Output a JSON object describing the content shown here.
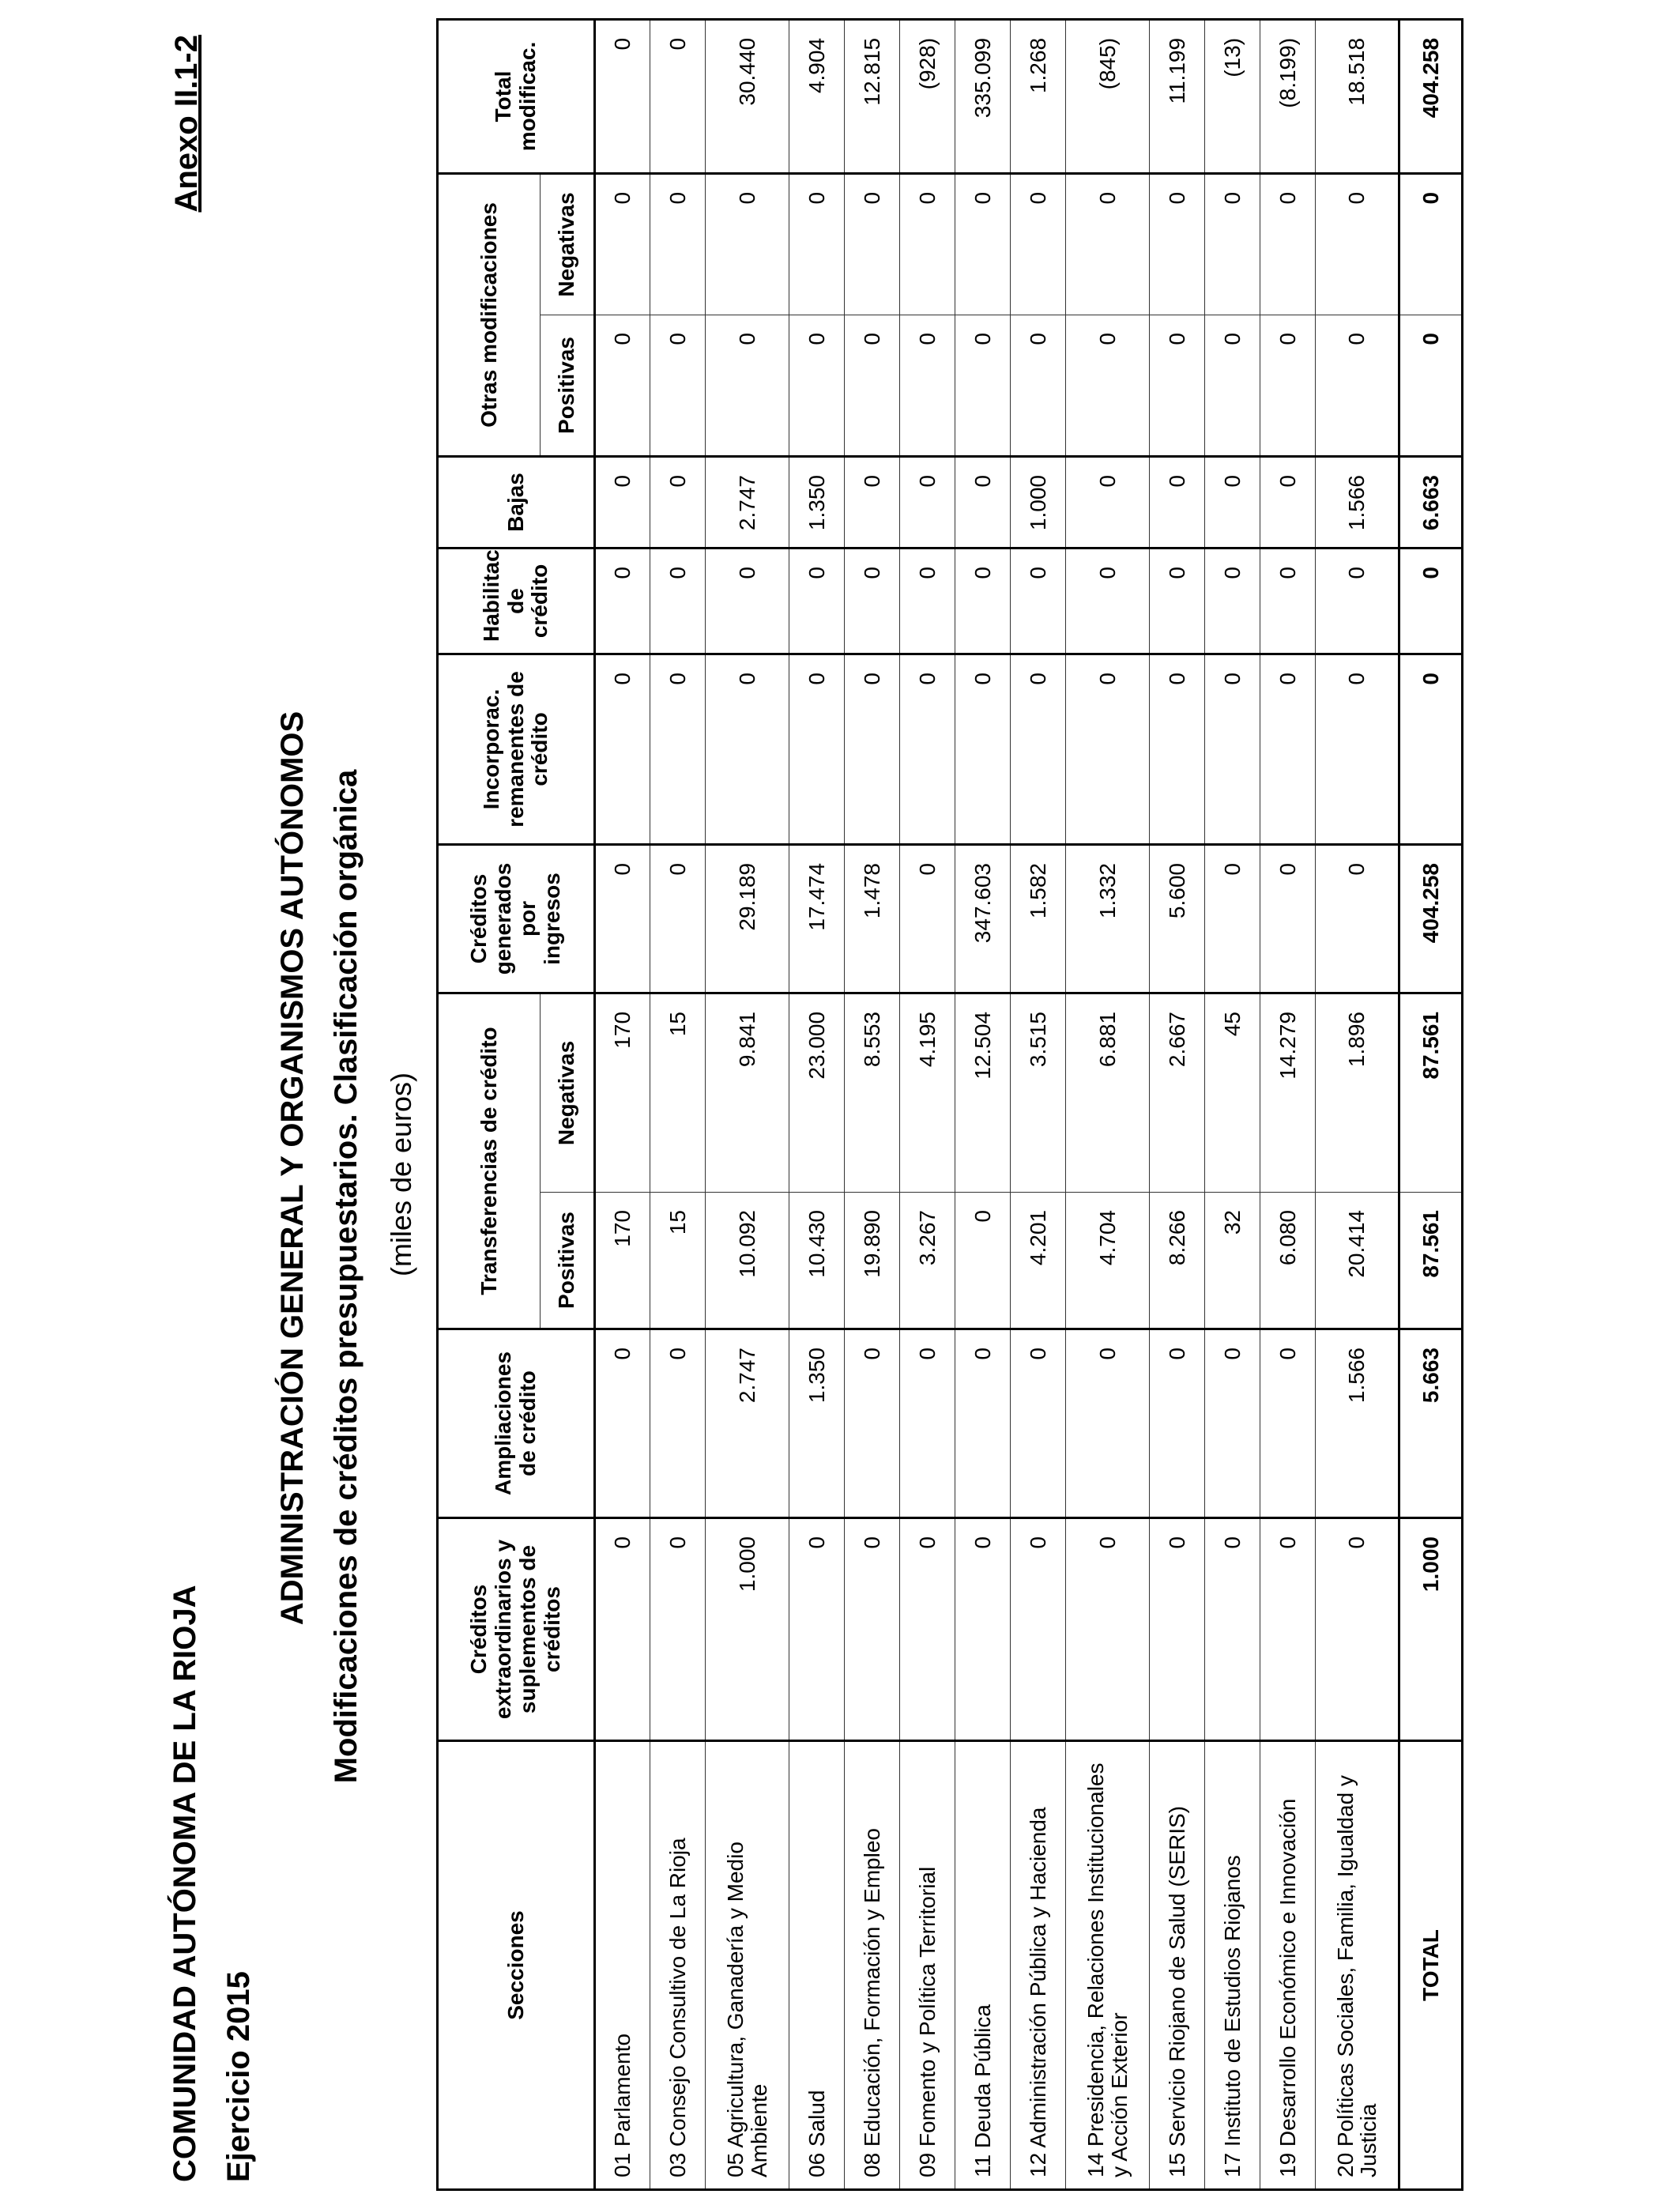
{
  "header": {
    "organization": "COMUNIDAD AUTÓNOMA DE LA RIOJA",
    "year": "Ejercicio 2015",
    "annex": "Anexo II.1-2",
    "title": "ADMINISTRACIÓN GENERAL Y ORGANISMOS AUTÓNOMOS",
    "subtitle": "Modificaciones de créditos presupuestarios. Clasificación orgánica",
    "unit": "(miles de euros)"
  },
  "table": {
    "headers": {
      "secciones": "Secciones",
      "extraordinarios": "Créditos extraordinarios y suplementos de créditos",
      "ampliaciones": "Ampliaciones de crédito",
      "transferencias": "Transferencias de crédito",
      "generados": "Créditos generados por ingresos",
      "incorporac": "Incorporac. remanentes de crédito",
      "habilitac": "Habilitac. de crédito",
      "bajas": "Bajas",
      "otras": "Otras modificaciones",
      "total": "Total modificac.",
      "positivas": "Positivas",
      "negativas": "Negativas"
    },
    "rows": [
      {
        "seccion": "01 Parlamento",
        "values": [
          "0",
          "0",
          "170",
          "170",
          "0",
          "0",
          "0",
          "0",
          "0",
          "0",
          "0"
        ]
      },
      {
        "seccion": "03 Consejo Consultivo de La Rioja",
        "values": [
          "0",
          "0",
          "15",
          "15",
          "0",
          "0",
          "0",
          "0",
          "0",
          "0",
          "0"
        ]
      },
      {
        "seccion": "05 Agricultura, Ganadería y Medio Ambiente",
        "values": [
          "1.000",
          "2.747",
          "10.092",
          "9.841",
          "29.189",
          "0",
          "0",
          "2.747",
          "0",
          "0",
          "30.440"
        ],
        "tall": true
      },
      {
        "seccion": "06 Salud",
        "values": [
          "0",
          "1.350",
          "10.430",
          "23.000",
          "17.474",
          "0",
          "0",
          "1.350",
          "0",
          "0",
          "4.904"
        ]
      },
      {
        "seccion": "08 Educación, Formación y Empleo",
        "values": [
          "0",
          "0",
          "19.890",
          "8.553",
          "1.478",
          "0",
          "0",
          "0",
          "0",
          "0",
          "12.815"
        ]
      },
      {
        "seccion": "09 Fomento y Política Territorial",
        "values": [
          "0",
          "0",
          "3.267",
          "4.195",
          "0",
          "0",
          "0",
          "0",
          "0",
          "0",
          "(928)"
        ]
      },
      {
        "seccion": "11 Deuda Pública",
        "values": [
          "0",
          "0",
          "0",
          "12.504",
          "347.603",
          "0",
          "0",
          "0",
          "0",
          "0",
          "335.099"
        ]
      },
      {
        "seccion": "12 Administración Pública y Hacienda",
        "values": [
          "0",
          "0",
          "4.201",
          "3.515",
          "1.582",
          "0",
          "0",
          "1.000",
          "0",
          "0",
          "1.268"
        ]
      },
      {
        "seccion": "14 Presidencia, Relaciones Institucionales y Acción Exterior",
        "values": [
          "0",
          "0",
          "4.704",
          "6.881",
          "1.332",
          "0",
          "0",
          "0",
          "0",
          "0",
          "(845)"
        ],
        "tall": true
      },
      {
        "seccion": "15 Servicio Riojano de Salud (SERIS)",
        "values": [
          "0",
          "0",
          "8.266",
          "2.667",
          "5.600",
          "0",
          "0",
          "0",
          "0",
          "0",
          "11.199"
        ]
      },
      {
        "seccion": "17 Instituto de Estudios Riojanos",
        "values": [
          "0",
          "0",
          "32",
          "45",
          "0",
          "0",
          "0",
          "0",
          "0",
          "0",
          "(13)"
        ]
      },
      {
        "seccion": "19 Desarrollo Económico e Innovación",
        "values": [
          "0",
          "0",
          "6.080",
          "14.279",
          "0",
          "0",
          "0",
          "0",
          "0",
          "0",
          "(8.199)"
        ]
      },
      {
        "seccion": "20 Políticas Sociales, Familia, Igualdad y Justicia",
        "values": [
          "0",
          "1.566",
          "20.414",
          "1.896",
          "0",
          "0",
          "0",
          "1.566",
          "0",
          "0",
          "18.518"
        ],
        "tall": true
      }
    ],
    "total": {
      "seccion": "TOTAL",
      "values": [
        "1.000",
        "5.663",
        "87.561",
        "87.561",
        "404.258",
        "0",
        "0",
        "6.663",
        "0",
        "0",
        "404.258"
      ]
    }
  }
}
